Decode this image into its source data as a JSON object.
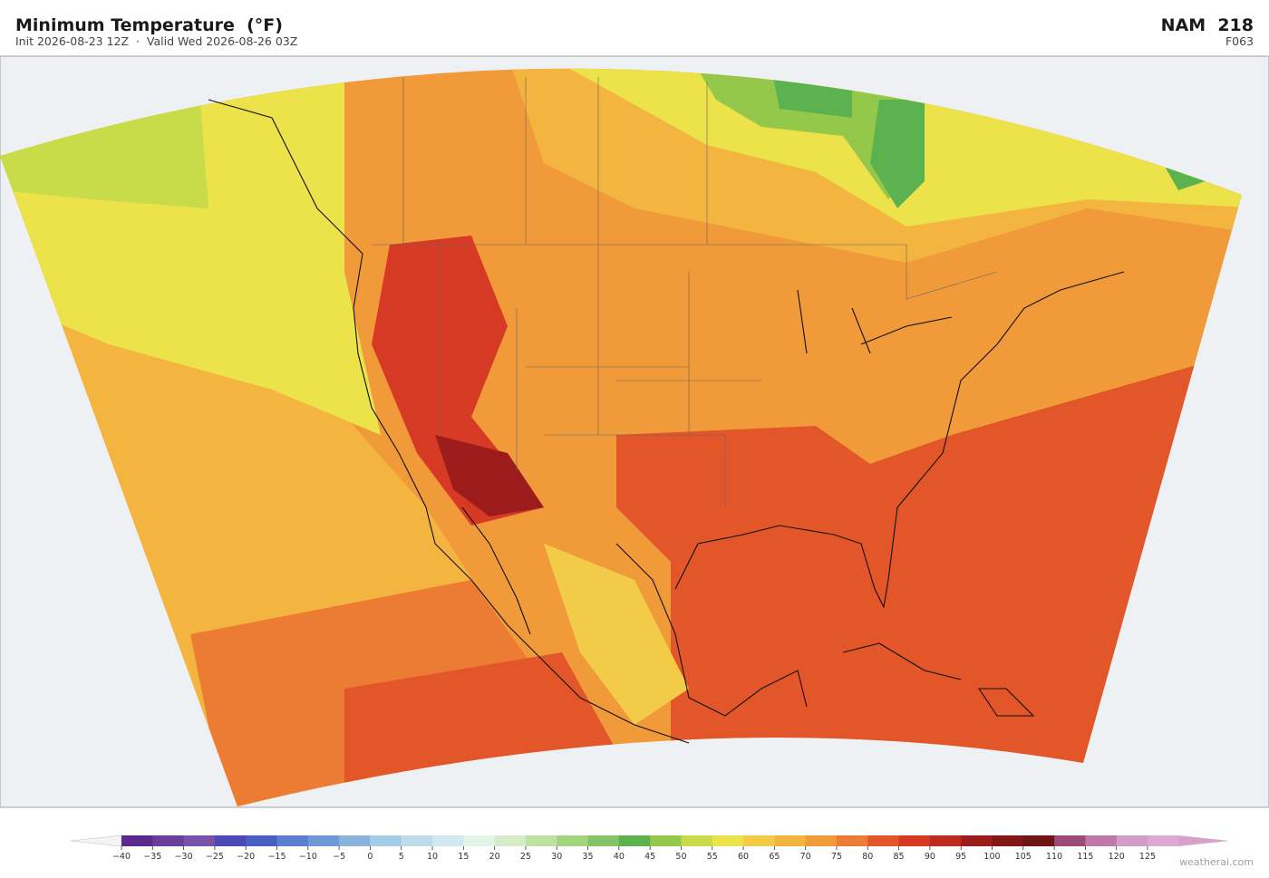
{
  "header": {
    "title": "Minimum Temperature  (°F)",
    "subtitle": "Init 2026-08-23 12Z  ·  Valid Wed 2026-08-26 03Z",
    "model": "NAM  218",
    "frame": "F063"
  },
  "colorbar": {
    "ticks": [
      {
        "value": -40,
        "label": "−40"
      },
      {
        "value": -35,
        "label": "−35"
      },
      {
        "value": -30,
        "label": "−30"
      },
      {
        "value": -25,
        "label": "−25"
      },
      {
        "value": -20,
        "label": "−20"
      },
      {
        "value": -15,
        "label": "−15"
      },
      {
        "value": -10,
        "label": "−10"
      },
      {
        "value": -5,
        "label": "−5"
      },
      0,
      5,
      10,
      15,
      20,
      25,
      30,
      35,
      40,
      45,
      50,
      55,
      60,
      65,
      70,
      75,
      80,
      85,
      90,
      95,
      100,
      105,
      110,
      115,
      120,
      125
    ],
    "colors": [
      "#5b2a8c",
      "#6a3c9c",
      "#7652a8",
      "#4d48b8",
      "#4a5fc4",
      "#5b7fd0",
      "#6e98d6",
      "#88b4de",
      "#a3cce6",
      "#bcdcec",
      "#d2e8ee",
      "#e4f2ea",
      "#d6ecc8",
      "#bfe29e",
      "#a2d47e",
      "#82c466",
      "#5cb24e",
      "#94c84a",
      "#c8dc4a",
      "#ece24a",
      "#f2cc48",
      "#f4b440",
      "#f09a3a",
      "#ec7c34",
      "#e2562a",
      "#d63a24",
      "#bc2a20",
      "#9c1c1c",
      "#821818",
      "#6e1414",
      "#9c4a78",
      "#c078a8",
      "#d49cc6",
      "#dcaad0"
    ],
    "under_color": "#f4f4f8",
    "over_color": "#d6a2cc"
  },
  "watermark": "weatherai.com"
}
